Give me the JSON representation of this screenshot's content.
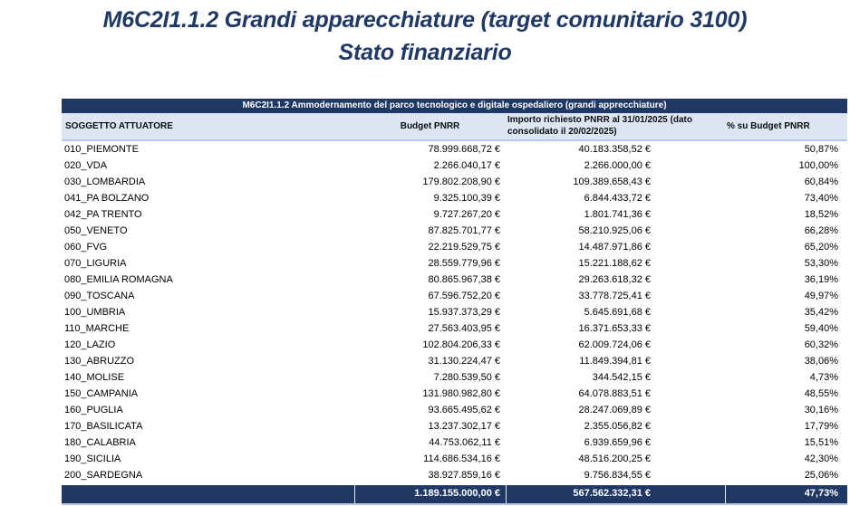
{
  "title": {
    "line1": "M6C2I1.1.2 Grandi apparecchiature (target comunitario 3100)",
    "line2": "Stato finanziario"
  },
  "table": {
    "band_title": "M6C2I1.1.2 Ammodernamento del parco tecnologico e digitale ospedaliero (grandi apprecchiature)",
    "columns": {
      "soggetto": "SOGGETTO ATTUATORE",
      "budget": "Budget PNRR",
      "importo": "Importo richiesto PNRR al 31/01/2025 (dato consolidato il 20/02/2025)",
      "pct": "% su Budget PNRR"
    },
    "rows": [
      {
        "name": "010_PIEMONTE",
        "budget": "78.999.668,72 €",
        "importo": "40.183.358,52 €",
        "pct": "50,87%"
      },
      {
        "name": "020_VDA",
        "budget": "2.266.040,17 €",
        "importo": "2.266.000,00 €",
        "pct": "100,00%"
      },
      {
        "name": "030_LOMBARDIA",
        "budget": "179.802.208,90 €",
        "importo": "109.389.658,43 €",
        "pct": "60,84%"
      },
      {
        "name": "041_PA BOLZANO",
        "budget": "9.325.100,39 €",
        "importo": "6.844.433,72 €",
        "pct": "73,40%"
      },
      {
        "name": "042_PA TRENTO",
        "budget": "9.727.267,20 €",
        "importo": "1.801.741,36 €",
        "pct": "18,52%"
      },
      {
        "name": "050_VENETO",
        "budget": "87.825.701,77 €",
        "importo": "58.210.925,06 €",
        "pct": "66,28%"
      },
      {
        "name": "060_FVG",
        "budget": "22.219.529,75 €",
        "importo": "14.487.971,86 €",
        "pct": "65,20%"
      },
      {
        "name": "070_LIGURIA",
        "budget": "28.559.779,96 €",
        "importo": "15.221.188,62 €",
        "pct": "53,30%"
      },
      {
        "name": "080_EMILIA ROMAGNA",
        "budget": "80.865.967,38 €",
        "importo": "29.263.618,32 €",
        "pct": "36,19%"
      },
      {
        "name": "090_TOSCANA",
        "budget": "67.596.752,20 €",
        "importo": "33.778.725,41 €",
        "pct": "49,97%"
      },
      {
        "name": "100_UMBRIA",
        "budget": "15.937.373,29 €",
        "importo": "5.645.691,68 €",
        "pct": "35,42%"
      },
      {
        "name": "110_MARCHE",
        "budget": "27.563.403,95 €",
        "importo": "16.371.653,33 €",
        "pct": "59,40%"
      },
      {
        "name": "120_LAZIO",
        "budget": "102.804.206,33 €",
        "importo": "62.009.724,06 €",
        "pct": "60,32%"
      },
      {
        "name": "130_ABRUZZO",
        "budget": "31.130.224,47 €",
        "importo": "11.849.394,81 €",
        "pct": "38,06%"
      },
      {
        "name": "140_MOLISE",
        "budget": "7.280.539,50 €",
        "importo": "344.542,15 €",
        "pct": "4,73%"
      },
      {
        "name": "150_CAMPANIA",
        "budget": "131.980.982,80 €",
        "importo": "64.078.883,51 €",
        "pct": "48,55%"
      },
      {
        "name": "160_PUGLIA",
        "budget": "93.665.495,62 €",
        "importo": "28.247.069,89 €",
        "pct": "30,16%"
      },
      {
        "name": "170_BASILICATA",
        "budget": "13.237.302,17 €",
        "importo": "2.355.056,82 €",
        "pct": "17,79%"
      },
      {
        "name": "180_CALABRIA",
        "budget": "44.753.062,11 €",
        "importo": "6.939.659,96 €",
        "pct": "15,51%"
      },
      {
        "name": "190_SICILIA",
        "budget": "114.686.534,16 €",
        "importo": "48.516.200,25 €",
        "pct": "42,30%"
      },
      {
        "name": "200_SARDEGNA",
        "budget": "38.927.859,16 €",
        "importo": "9.756.834,55 €",
        "pct": "25,06%"
      }
    ],
    "total": {
      "budget": "1.189.155.000,00 €",
      "importo": "567.562.332,31 €",
      "pct": "47,73%"
    }
  },
  "colors": {
    "navy": "#1f3864",
    "header_bg": "#dce6f2",
    "light_border": "#b4c6e7"
  }
}
